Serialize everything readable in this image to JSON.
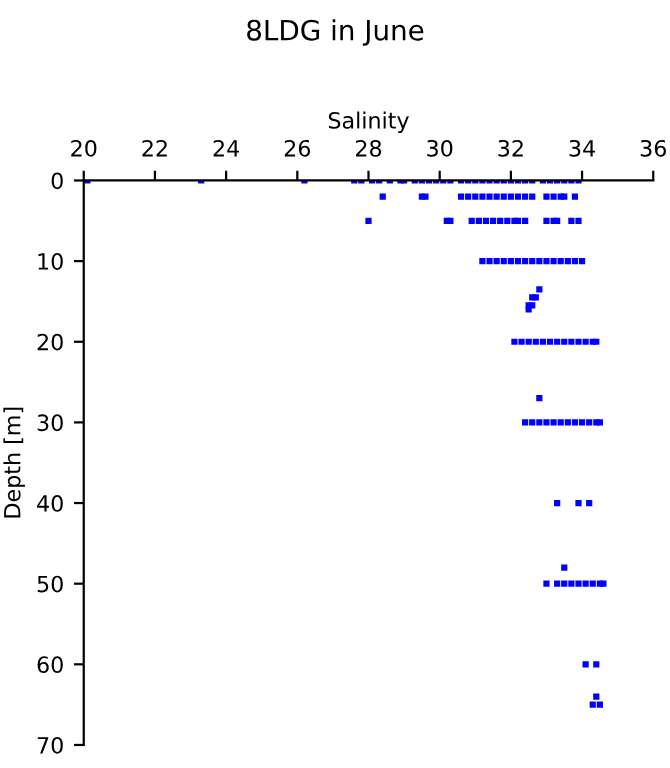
{
  "chart_data": {
    "type": "scatter",
    "title": "8LDG in June",
    "xlabel": "Salinity",
    "ylabel": "Depth [m]",
    "marker": "square",
    "grid": false,
    "xlim": [
      20,
      36
    ],
    "xticks": [
      20,
      22,
      24,
      26,
      28,
      30,
      32,
      34,
      36
    ],
    "ylim": [
      70,
      0
    ],
    "yticks": [
      0,
      10,
      20,
      30,
      40,
      50,
      60,
      70
    ],
    "series": [
      {
        "color": "#0000ff",
        "x": [
          20.1,
          23.3,
          26.2,
          27.6,
          27.8,
          28.1,
          28.3,
          28.6,
          28.9,
          29.0,
          29.3,
          29.5,
          29.7,
          29.9,
          30.1,
          30.3,
          30.6,
          30.8,
          31.0,
          31.2,
          31.4,
          31.6,
          31.8,
          32.0,
          32.2,
          32.4,
          32.6,
          32.9,
          33.1,
          33.3,
          33.5,
          33.7,
          33.9,
          28.4,
          29.5,
          29.6,
          30.6,
          30.8,
          31.0,
          31.2,
          31.4,
          31.6,
          31.8,
          32.0,
          32.2,
          32.4,
          32.6,
          33.0,
          33.2,
          33.4,
          33.5,
          33.8,
          28.0,
          30.2,
          30.3,
          30.9,
          31.1,
          31.3,
          31.5,
          31.7,
          31.9,
          32.1,
          32.2,
          32.4,
          33.0,
          33.2,
          33.3,
          33.7,
          33.9,
          31.2,
          31.4,
          31.6,
          31.8,
          32.0,
          32.2,
          32.4,
          32.6,
          32.8,
          33.0,
          33.2,
          33.4,
          33.6,
          33.8,
          34.0,
          32.8,
          32.7,
          32.6,
          32.5,
          32.6,
          32.5,
          32.1,
          32.3,
          32.5,
          32.7,
          32.9,
          33.1,
          33.3,
          33.5,
          33.7,
          33.9,
          34.1,
          34.3,
          34.4,
          32.8,
          32.4,
          32.6,
          32.8,
          33.0,
          33.2,
          33.4,
          33.6,
          33.8,
          34.0,
          34.2,
          34.4,
          34.5,
          33.3,
          33.9,
          34.2,
          33.5,
          33.0,
          33.3,
          33.5,
          33.7,
          33.9,
          34.1,
          34.3,
          34.5,
          34.6,
          34.1,
          34.4,
          34.4,
          34.3,
          34.5
        ],
        "values": [
          0,
          0,
          0,
          0,
          0,
          0,
          0,
          0,
          0,
          0,
          0,
          0,
          0,
          0,
          0,
          0,
          0,
          0,
          0,
          0,
          0,
          0,
          0,
          0,
          0,
          0,
          0,
          0,
          0,
          0,
          0,
          0,
          0,
          2,
          2,
          2,
          2,
          2,
          2,
          2,
          2,
          2,
          2,
          2,
          2,
          2,
          2,
          2,
          2,
          2,
          2,
          2,
          5,
          5,
          5,
          5,
          5,
          5,
          5,
          5,
          5,
          5,
          5,
          5,
          5,
          5,
          5,
          5,
          5,
          10,
          10,
          10,
          10,
          10,
          10,
          10,
          10,
          10,
          10,
          10,
          10,
          10,
          10,
          10,
          13.5,
          14.5,
          14.5,
          15.5,
          15.5,
          16,
          20,
          20,
          20,
          20,
          20,
          20,
          20,
          20,
          20,
          20,
          20,
          20,
          20,
          27,
          30,
          30,
          30,
          30,
          30,
          30,
          30,
          30,
          30,
          30,
          30,
          30,
          40,
          40,
          40,
          48,
          50,
          50,
          50,
          50,
          50,
          50,
          50,
          50,
          50,
          60,
          60,
          64,
          65,
          65
        ]
      }
    ]
  }
}
